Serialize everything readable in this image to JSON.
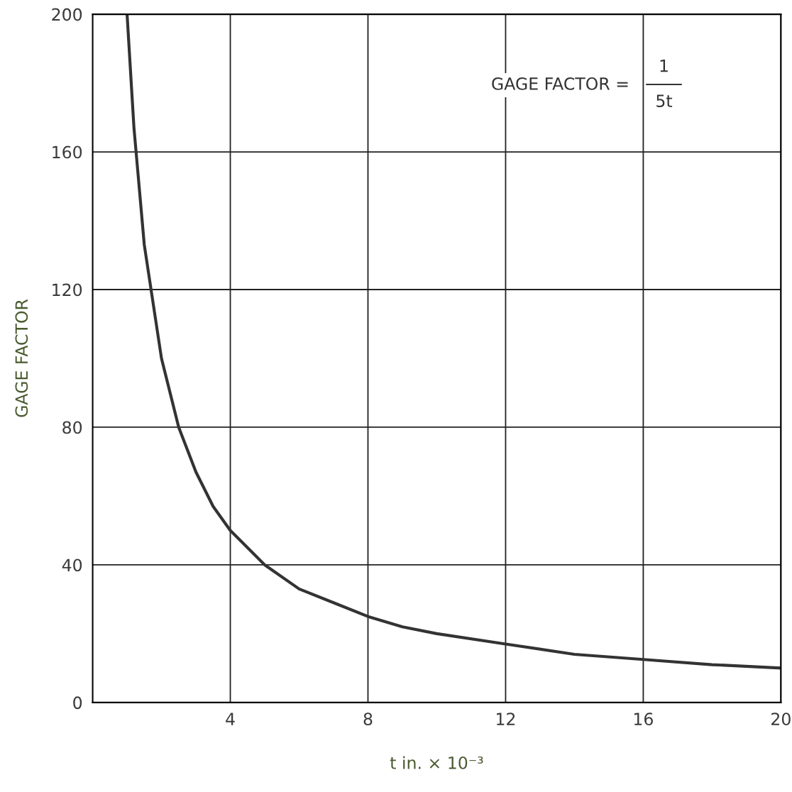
{
  "chart_data": {
    "type": "line",
    "xlabel": "t in. × 10⁻³",
    "ylabel": "GAGE FACTOR",
    "annotations": [
      "GAGE FACTOR =",
      "1",
      "5t"
    ],
    "x": [
      1,
      1.2,
      1.5,
      2,
      2.5,
      3,
      3.5,
      4,
      5,
      6,
      7,
      8,
      9,
      10,
      12,
      14,
      16,
      18,
      20
    ],
    "series": [
      {
        "color": "#333333",
        "values": [
          200,
          167,
          133,
          100,
          80,
          67,
          57,
          50,
          40,
          33,
          29,
          25,
          22,
          20,
          17,
          14,
          12.5,
          11,
          10
        ]
      }
    ],
    "xlim": [
      0,
      20
    ],
    "xticks": [
      4,
      8,
      12,
      16,
      20
    ],
    "ylim": [
      0,
      200
    ],
    "yticks": [
      0,
      40,
      80,
      120,
      160,
      200
    ],
    "grid": true,
    "marker": "none",
    "line_style": "solid"
  }
}
